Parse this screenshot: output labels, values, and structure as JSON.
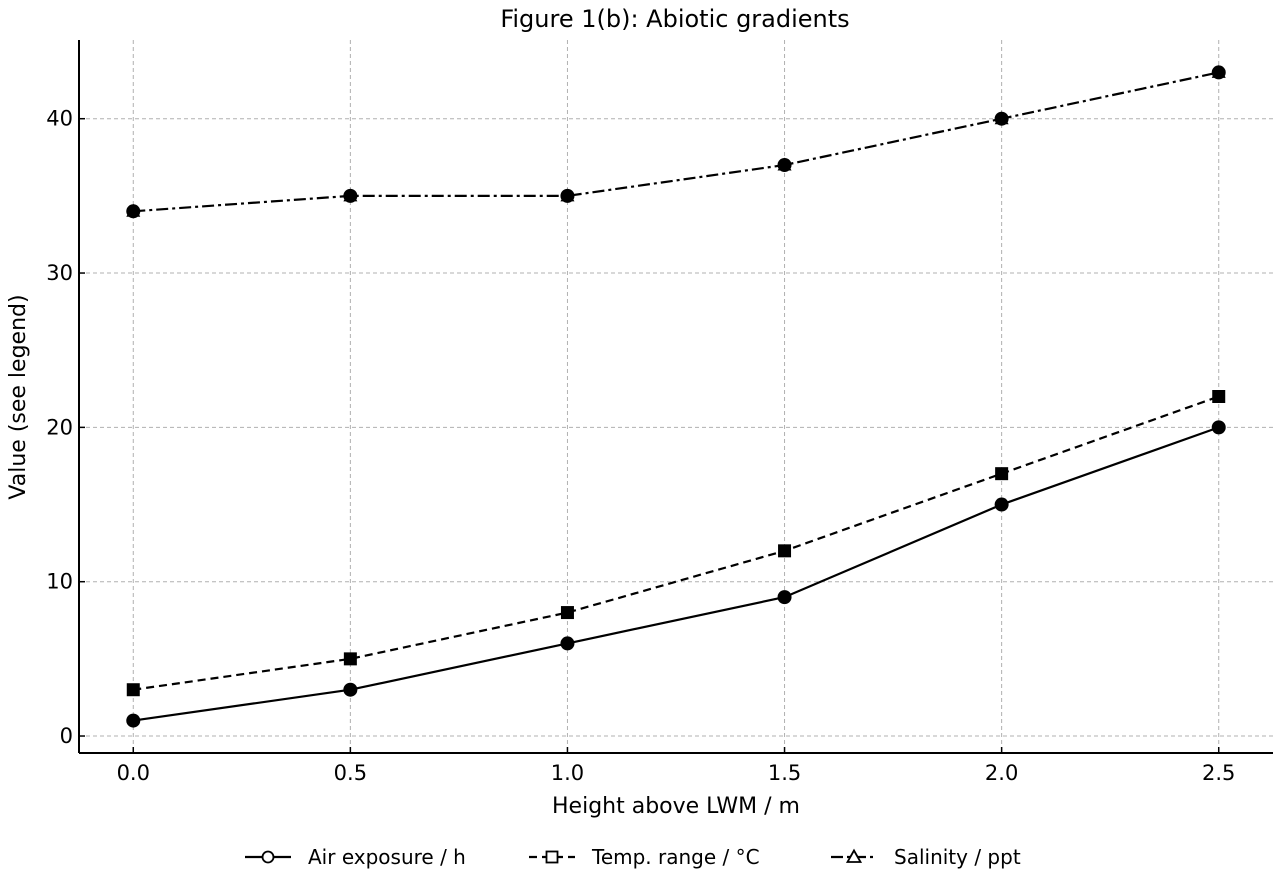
{
  "chart_data": {
    "type": "line",
    "title": "Figure 1(b): Abiotic gradients",
    "xlabel": "Height above LWM / m",
    "ylabel": "Value (see legend)",
    "x": [
      0.0,
      0.5,
      1.0,
      1.5,
      2.0,
      2.5
    ],
    "x_ticks": [
      "0.0",
      "0.5",
      "1.0",
      "1.5",
      "2.0",
      "2.5"
    ],
    "y_ticks": [
      "0",
      "10",
      "20",
      "30",
      "40"
    ],
    "xlim": [
      -0.125,
      2.625
    ],
    "ylim": [
      -1.1,
      45.1
    ],
    "grid": true,
    "legend_position": "bottom-center",
    "series": [
      {
        "name": "Air exposure / h",
        "values": [
          1,
          3,
          6,
          9,
          15,
          20
        ],
        "line_style": "solid",
        "marker": "circle",
        "color": "#000000"
      },
      {
        "name": "Temp. range / °C",
        "values": [
          3,
          5,
          8,
          12,
          17,
          22
        ],
        "line_style": "dashed",
        "marker": "square",
        "color": "#000000"
      },
      {
        "name": "Salinity / ppt",
        "values": [
          34,
          35,
          35,
          37,
          40,
          43
        ],
        "line_style": "dashdot",
        "marker": "triangle",
        "color": "#000000"
      }
    ]
  }
}
